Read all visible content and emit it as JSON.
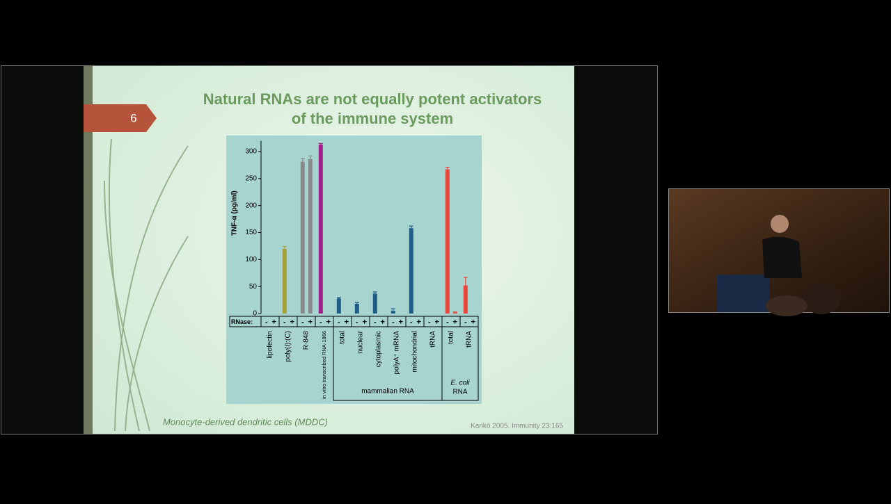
{
  "slide": {
    "number": "6",
    "title": [
      "Natural RNAs are not equally potent activators",
      "of the immune system"
    ],
    "footer": "Monocyte-derived dendritic cells (MDDC)",
    "citation": "Karikó  2005. Immunity 23:165"
  },
  "chart_data": {
    "type": "bar",
    "ylabel": "TNF-α (pg/ml)",
    "row_label": "RNase:",
    "categories": [
      "lipofectin",
      "poly(I):(C)",
      "R-848",
      "in vitro transcribed RNA-1866",
      "total",
      "nuclear",
      "cytoplasmic",
      "polyA⁺ mRNA",
      "mitochondrial",
      "tRNA",
      "total",
      "tRNA"
    ],
    "category_colors": [
      "#1f5f86",
      "#a3a03a",
      "#8a8a8a",
      "#a0208a",
      "#1f5f86",
      "#1f5f86",
      "#1f5f86",
      "#1f5f86",
      "#1f5f86",
      "#1f5f86",
      "#e8483c",
      "#e8483c"
    ],
    "series": [
      {
        "name": "-",
        "values": [
          0,
          120,
          281,
          313,
          28,
          18,
          37,
          5,
          158,
          0,
          267,
          52
        ],
        "errors": [
          0,
          4,
          6,
          2,
          2,
          2,
          3,
          4,
          4,
          0,
          4,
          15
        ]
      },
      {
        "name": "+",
        "values": [
          0,
          0,
          286,
          0,
          0,
          0,
          0,
          0,
          0,
          0,
          2,
          0
        ],
        "errors": [
          0,
          0,
          6,
          0,
          0,
          0,
          0,
          0,
          0,
          0,
          1,
          0
        ]
      }
    ],
    "groups": [
      {
        "label": "mammalian RNA"
      },
      {
        "label": "E. coli",
        "sublabel": "RNA"
      }
    ],
    "ylim": [
      0,
      320
    ],
    "yticks": [
      0,
      50,
      100,
      150,
      200,
      250,
      300
    ]
  }
}
